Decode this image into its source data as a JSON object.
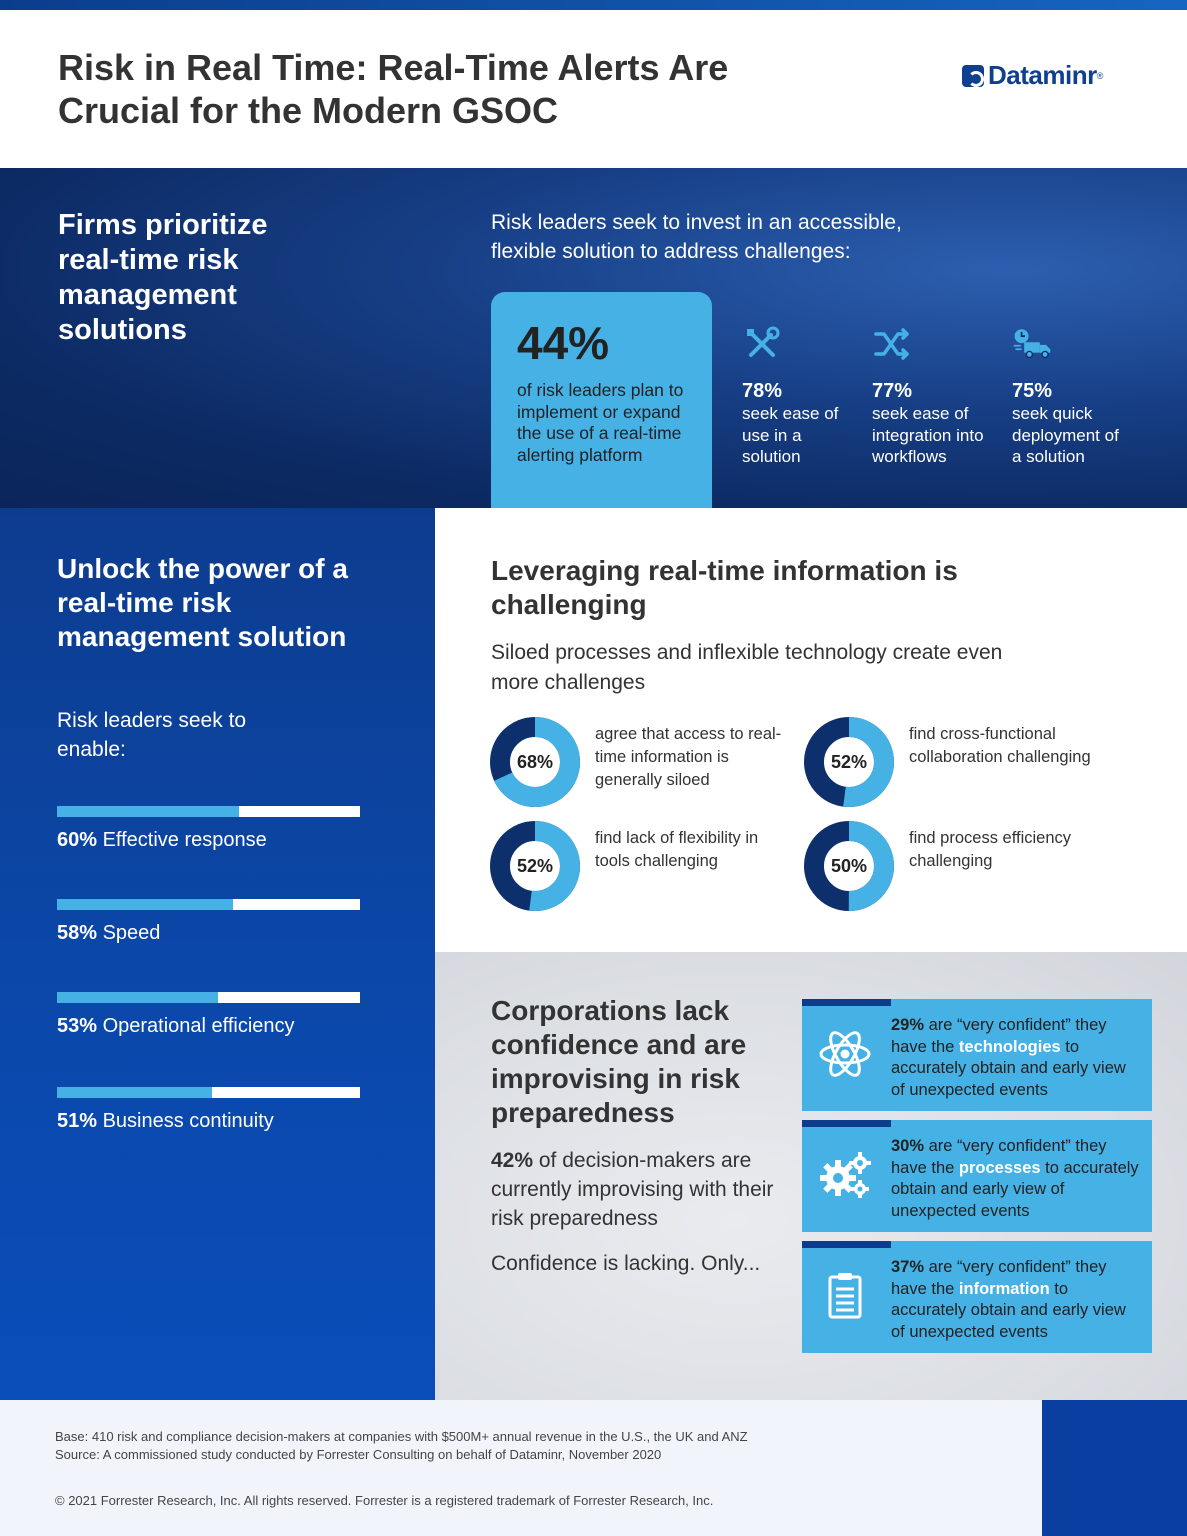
{
  "header": {
    "title": "Risk in Real Time: Real-Time Alerts Are Crucial for the Modern GSOC",
    "logo_text": "Dataminr",
    "logo_reg": "®"
  },
  "section1": {
    "left_title": "Firms prioritize real-time risk management solutions",
    "subtitle": "Risk leaders seek to invest in an accessible, flexible solution to address challenges:",
    "highlight": {
      "percent": "44%",
      "text": "of risk leaders plan to implement or expand the use of a real-time alerting platform"
    },
    "stats": [
      {
        "icon": "tools-icon",
        "percent": "78%",
        "text": "seek ease of use in a solution"
      },
      {
        "icon": "shuffle-icon",
        "percent": "77%",
        "text": "seek ease of integration into workflows"
      },
      {
        "icon": "delivery-truck-icon",
        "percent": "75%",
        "text": "seek quick deployment of a solution"
      }
    ]
  },
  "section2_left": {
    "title": "Unlock the power of a real-time risk management solution",
    "subtitle": "Risk leaders seek to enable:",
    "bars": [
      {
        "percent": "60%",
        "value": 60,
        "label": "Effective response"
      },
      {
        "percent": "58%",
        "value": 58,
        "label": "Speed"
      },
      {
        "percent": "53%",
        "value": 53,
        "label": "Operational efficiency"
      },
      {
        "percent": "51%",
        "value": 51,
        "label": "Business continuity"
      }
    ]
  },
  "section2_right": {
    "title": "Leveraging real-time information is challenging",
    "subtitle": "Siloed processes and inflexible technology create even more challenges",
    "donuts": [
      {
        "percent": "68%",
        "value": 68,
        "text": "agree that access to real-time information is generally siloed"
      },
      {
        "percent": "52%",
        "value": 52,
        "text": "find cross-functional collaboration challenging"
      },
      {
        "percent": "52%",
        "value": 52,
        "text": "find lack of flexibility in tools challenging"
      },
      {
        "percent": "50%",
        "value": 50,
        "text": "find process efficiency challenging"
      }
    ]
  },
  "section3": {
    "title": "Corporations lack confidence and are improvising in risk preparedness",
    "stat_percent": "42%",
    "stat_text": "of decision-makers are currently improvising with their risk preparedness",
    "confidence_line": "Confidence is lacking. Only...",
    "cards": [
      {
        "icon": "atom-icon",
        "percent": "29%",
        "pre": "are “very confident” they have the",
        "highlight": "technologies",
        "post": "to accurately obtain and early view of unexpected events"
      },
      {
        "icon": "gears-icon",
        "percent": "30%",
        "pre": "are “very confident” they have the",
        "highlight": "processes",
        "post": "to accurately obtain and early view of unexpected events"
      },
      {
        "icon": "clipboard-icon",
        "percent": "37%",
        "pre": "are “very confident” they have the",
        "highlight": "information",
        "post": "to accurately obtain and early view of unexpected events"
      }
    ]
  },
  "footer": {
    "base": "Base: 410 risk and compliance decision-makers at companies with $500M+ annual revenue in the U.S., the UK and ANZ",
    "source": "Source: A commissioned study conducted by Forrester Consulting on behalf of Dataminr, November 2020",
    "copyright": "© 2021 Forrester Research, Inc. All rights reserved. Forrester is a registered trademark of Forrester Research, Inc."
  },
  "colors": {
    "accent_light_blue": "#45b1e5",
    "navy": "#0c2a63",
    "donut_dark": "#0d2f6b"
  }
}
